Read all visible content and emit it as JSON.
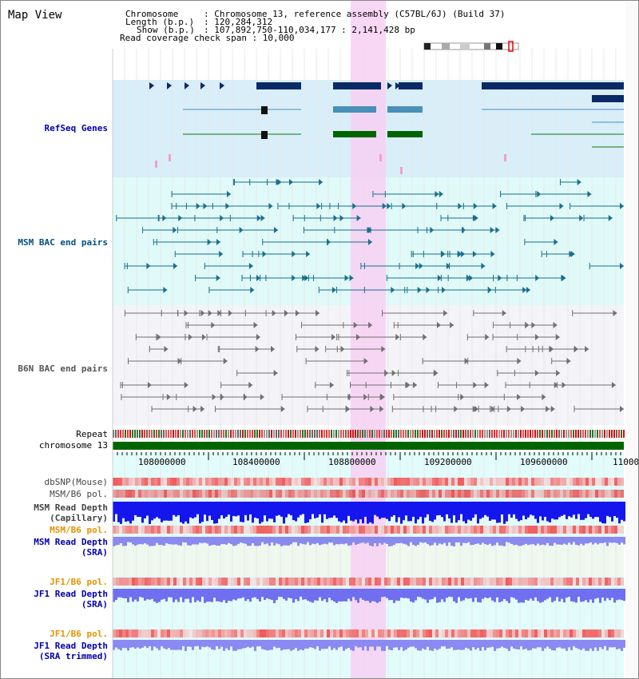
{
  "title": "Map View",
  "header": {
    "chromosome_key": "Chromosome",
    "chromosome_val": ": Chromosome 13, reference assembly (C57BL/6J) (Build 37)",
    "length_key": "Length (b.p.)",
    "length_val": ": 120,284,312",
    "show_key": "Show (b.p.)",
    "show_val": ": 107,892,750-110,034,177 : 2,141,428 bp",
    "coverage": "Read coverage check span : 10,000"
  },
  "tracks": {
    "refseq": "RefSeq Genes",
    "msm_bac": "MSM BAC end pairs",
    "b6n_bac": "B6N BAC end pairs",
    "repeat": "Repeat",
    "chromosome": "chromosome 13",
    "dbsnp": "dbSNP(Mouse)",
    "msm_pol_1": "MSM/B6 pol.",
    "msm_depth_cap": "MSM Read Depth\n(Capillary)",
    "msm_pol_2": "MSM/B6 pol.",
    "msm_depth_sra": "MSM Read Depth\n(SRA)",
    "jf1_pol_1": "JF1/B6 pol.",
    "jf1_depth_sra": "JF1 Read Depth\n(SRA)",
    "jf1_pol_2": "JF1/B6 pol.",
    "jf1_depth_trim": "JF1 Read Depth\n(SRA trimmed)"
  },
  "axis_ticks": [
    "108000000",
    "108400000",
    "108800000",
    "109200000",
    "109600000",
    "11000"
  ],
  "colors": {
    "highlight": "#f7d0f3",
    "refseq_bg": "#d8eef9",
    "msm_bg": "#dffaf8",
    "chromosome_bar": "#006400",
    "label_blue": "#0000aa",
    "label_orange": "#e69200"
  }
}
